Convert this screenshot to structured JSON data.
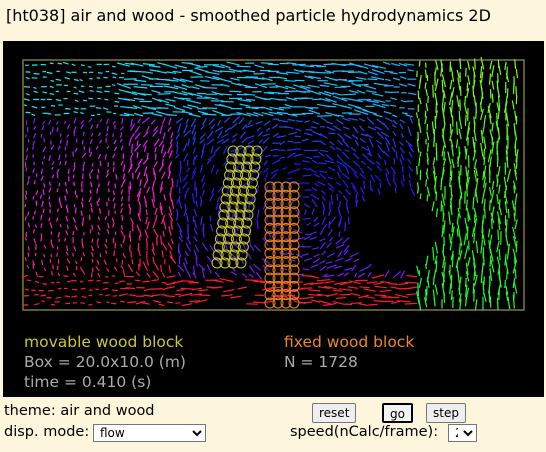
{
  "window": {
    "title": "[ht038] air and wood - smoothed particle hydrodynamics 2D"
  },
  "simulation": {
    "movable_label": "movable wood block",
    "box_label": "Box = 20.0x10.0 (m)",
    "time_label": "time = 0.410 (s)",
    "fixed_label": "fixed wood block",
    "count_label": "N = 1728",
    "colors": {
      "movable": "#c8c832",
      "fixed": "#ee8622",
      "info": "#aaaaaa",
      "frame": "#7a7a3a",
      "background": "#000000"
    }
  },
  "controls": {
    "theme_label": "theme: air and wood",
    "disp_mode_label": "disp. mode:",
    "disp_mode_value": "flow",
    "reset_label": "reset",
    "go_label": "go",
    "step_label": "step",
    "speed_label": "speed(nCalc/frame):",
    "speed_value": "2"
  }
}
